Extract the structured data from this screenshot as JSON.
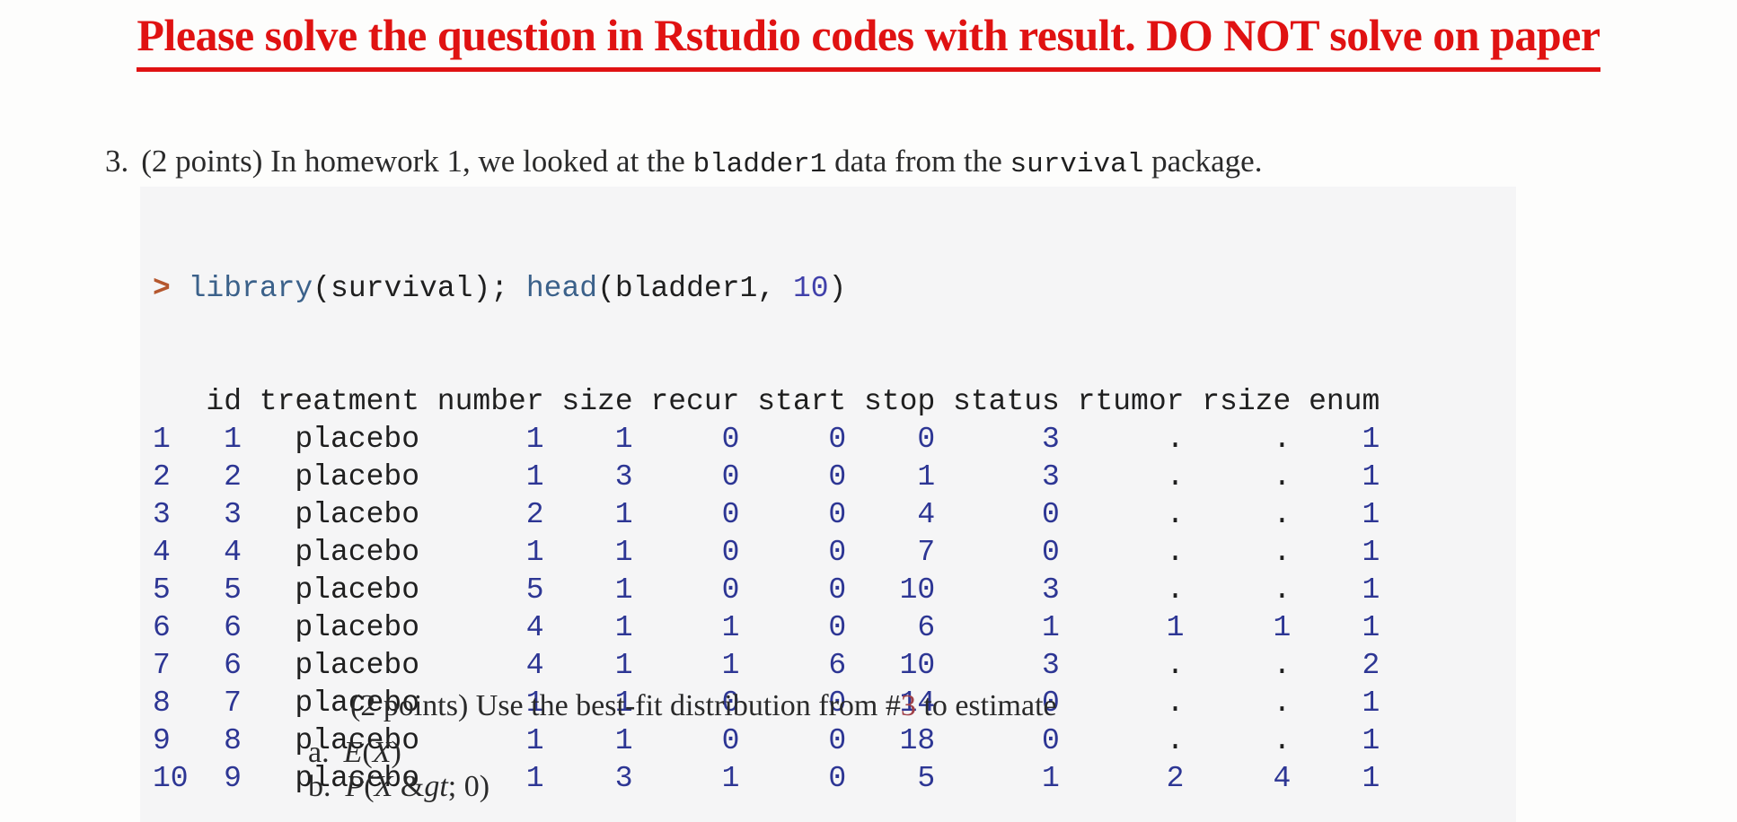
{
  "banner": {
    "text": "Please solve the question in Rstudio codes with result. DO NOT solve on paper"
  },
  "question": {
    "number": "3.",
    "prefix": "(2 points) In homework 1, we looked at the ",
    "dataset": "bladder1",
    "middle": " data from the ",
    "package": "survival",
    "suffix": " package."
  },
  "console": {
    "code_segments": [
      {
        "text": "> ",
        "kind": "prompt"
      },
      {
        "text": "library",
        "kind": "fn"
      },
      {
        "text": "(survival); ",
        "kind": "plain"
      },
      {
        "text": "head",
        "kind": "fn"
      },
      {
        "text": "(bladder1, ",
        "kind": "plain"
      },
      {
        "text": "10",
        "kind": "num"
      },
      {
        "text": ")",
        "kind": "plain"
      }
    ],
    "table": {
      "columns": [
        "id",
        "treatment",
        "number",
        "size",
        "recur",
        "start",
        "stop",
        "status",
        "rtumor",
        "rsize",
        "enum"
      ],
      "rows": [
        [
          "1",
          "1",
          "placebo",
          "1",
          "1",
          "0",
          "0",
          "0",
          "3",
          ".",
          ".",
          "1"
        ],
        [
          "2",
          "2",
          "placebo",
          "1",
          "3",
          "0",
          "0",
          "1",
          "3",
          ".",
          ".",
          "1"
        ],
        [
          "3",
          "3",
          "placebo",
          "2",
          "1",
          "0",
          "0",
          "4",
          "0",
          ".",
          ".",
          "1"
        ],
        [
          "4",
          "4",
          "placebo",
          "1",
          "1",
          "0",
          "0",
          "7",
          "0",
          ".",
          ".",
          "1"
        ],
        [
          "5",
          "5",
          "placebo",
          "5",
          "1",
          "0",
          "0",
          "10",
          "3",
          ".",
          ".",
          "1"
        ],
        [
          "6",
          "6",
          "placebo",
          "4",
          "1",
          "1",
          "0",
          "6",
          "1",
          "1",
          "1",
          "1"
        ],
        [
          "7",
          "6",
          "placebo",
          "4",
          "1",
          "1",
          "6",
          "10",
          "3",
          ".",
          ".",
          "2"
        ],
        [
          "8",
          "7",
          "placebo",
          "1",
          "1",
          "0",
          "0",
          "14",
          "0",
          ".",
          ".",
          "1"
        ],
        [
          "9",
          "8",
          "placebo",
          "1",
          "1",
          "0",
          "0",
          "18",
          "0",
          ".",
          ".",
          "1"
        ],
        [
          "10",
          "9",
          "placebo",
          "1",
          "3",
          "1",
          "0",
          "5",
          "1",
          "2",
          "4",
          "1"
        ]
      ]
    }
  },
  "estimate": {
    "prefix": "(2 points) Use the best-fit distribution from ",
    "hash": "#",
    "ref": "3",
    "suffix": " to estimate"
  },
  "items": [
    {
      "label": "a.",
      "math": "E(X)"
    },
    {
      "label": "b.",
      "math": "P(X > 0)"
    }
  ],
  "colors": {
    "banner_red": "#e01212",
    "prompt_orange": "#b5572e",
    "function_blue": "#3b618a",
    "numeric_literal_blue": "#4040aa",
    "table_number_blue": "#2d3694",
    "reference_maroon": "#a04048",
    "console_background": "#f5f5f6"
  }
}
